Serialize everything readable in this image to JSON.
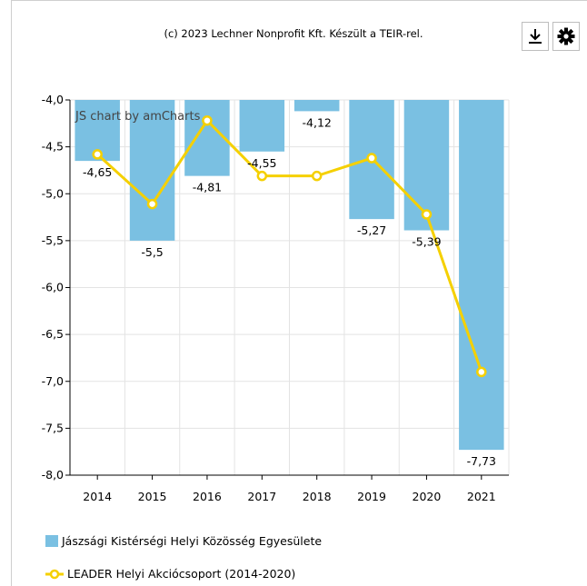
{
  "credit": "(c) 2023 Lechner Nonprofit Kft. Készült a TEIR-rel.",
  "toolbar": {
    "download_icon": "download-icon",
    "settings_icon": "gear-icon"
  },
  "watermark": "JS chart by amCharts",
  "colors": {
    "bar": "#7ac0e2",
    "line": "#f5d000",
    "grid": "#e3e3e3"
  },
  "chart_data": {
    "type": "bar",
    "categories": [
      "2014",
      "2015",
      "2016",
      "2017",
      "2018",
      "2019",
      "2020",
      "2021"
    ],
    "ylim": [
      -8.0,
      -4.0
    ],
    "yticks": [
      "-4,0",
      "-4,5",
      "-5,0",
      "-5,5",
      "-6,0",
      "-6,5",
      "-7,0",
      "-7,5",
      "-8,0"
    ],
    "ytick_values": [
      -4.0,
      -4.5,
      -5.0,
      -5.5,
      -6.0,
      -6.5,
      -7.0,
      -7.5,
      -8.0
    ],
    "series": [
      {
        "name": "Jászsági Kistérségi Helyi Közösség Egyesülete",
        "type": "bar",
        "values": [
          -4.65,
          -5.5,
          -4.81,
          -4.55,
          -4.12,
          -5.27,
          -5.39,
          -7.73
        ],
        "labels": [
          "-4,65",
          "-5,5",
          "-4,81",
          "-4,55",
          "-4,12",
          "-5,27",
          "-5,39",
          "-7,73"
        ]
      },
      {
        "name": "LEADER Helyi Akciócsoport (2014-2020)",
        "type": "line",
        "values": [
          -4.58,
          -5.11,
          -4.22,
          -4.81,
          -4.81,
          -4.62,
          -5.22,
          -6.9
        ]
      }
    ],
    "legend": "bottom",
    "grid": true
  }
}
